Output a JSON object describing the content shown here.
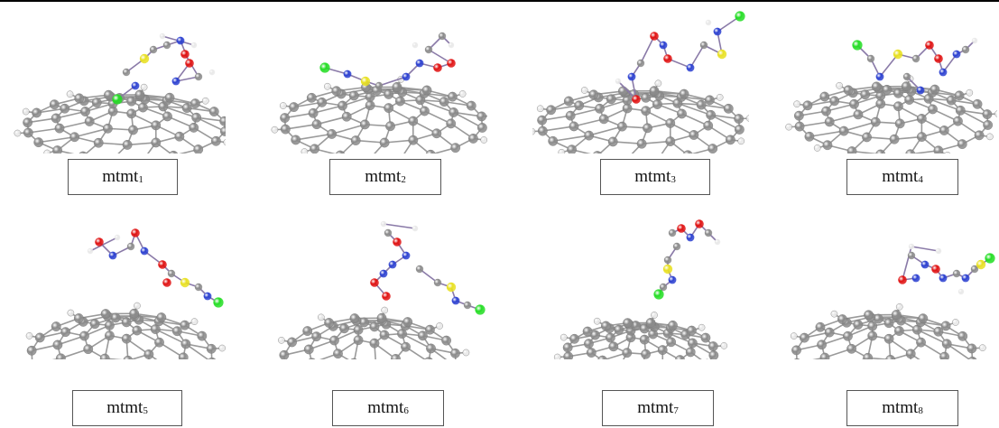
{
  "figure": {
    "panels": [
      {
        "id": 1,
        "base": "mtmt",
        "sub": "1"
      },
      {
        "id": 2,
        "base": "mtmt",
        "sub": "2"
      },
      {
        "id": 3,
        "base": "mtmt",
        "sub": "3"
      },
      {
        "id": 4,
        "base": "mtmt",
        "sub": "4"
      },
      {
        "id": 5,
        "base": "mtmt",
        "sub": "5"
      },
      {
        "id": 6,
        "base": "mtmt",
        "sub": "6"
      },
      {
        "id": 7,
        "base": "mtmt",
        "sub": "7"
      },
      {
        "id": 8,
        "base": "mtmt",
        "sub": "8"
      }
    ],
    "atom_colors": {
      "carbon": "#8a8a8a",
      "hydrogen": "#e8e8e8",
      "nitrogen": "#2a3fd0",
      "oxygen": "#e01010",
      "sulfur": "#e8e020",
      "chlorine": "#22dd22"
    }
  }
}
